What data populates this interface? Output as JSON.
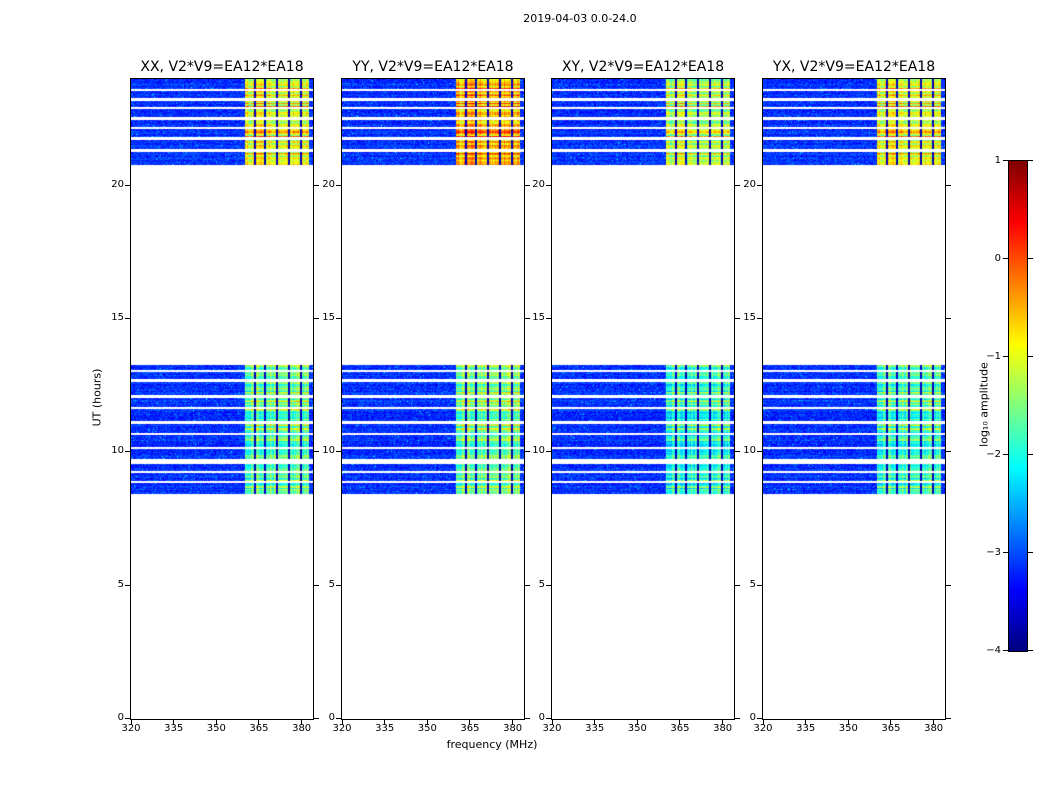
{
  "chart_data": {
    "type": "heatmap",
    "title": "2019-04-03 0.0-24.0",
    "xlabel": "frequency (MHz)",
    "ylabel": "UT (hours)",
    "x_range_mhz": [
      320,
      384
    ],
    "y_range_hours": [
      0,
      24
    ],
    "xticks": [
      320,
      335,
      350,
      365,
      380
    ],
    "yticks": [
      0,
      5,
      10,
      15,
      20
    ],
    "grid": false,
    "panels": [
      {
        "id": "XX",
        "title": "XX, V2*V9=EA12*EA18"
      },
      {
        "id": "YY",
        "title": "YY, V2*V9=EA12*EA18"
      },
      {
        "id": "XY",
        "title": "XY, V2*V9=EA12*EA18"
      },
      {
        "id": "YX",
        "title": "YX, V2*V9=EA12*EA18"
      }
    ],
    "colorbar": {
      "label": "log₁₀ amplitude",
      "ticks": [
        1,
        0,
        -1,
        -2,
        -3,
        -4
      ],
      "range": [
        -4,
        1
      ],
      "colormap": "jet",
      "position": "right"
    },
    "background_noise": {
      "level": -3.45,
      "spread": 0.6,
      "speckle_prob": 0.03,
      "speckle_boost": 1.0,
      "row_variation": 0.12
    },
    "rfi": {
      "freq_range": [
        360.2,
        382.6
      ],
      "dark_channels": [
        [
          363.2,
          363.9
        ],
        [
          366.7,
          367.4
        ],
        [
          371.0,
          371.7
        ],
        [
          375.2,
          375.9
        ],
        [
          379.5,
          380.2
        ]
      ],
      "dark_level": -3.9,
      "row_variation": 0.45,
      "col_variation": 0.35,
      "pixel_noise": 0.3,
      "bright_row_prob": 0.18,
      "bright_row_boost": 0.55
    },
    "observation_bands": [
      {
        "ut_range": [
          8.42,
          13.28
        ],
        "rfi_level": -1.8,
        "panel_rfi_boosts": [
          0.15,
          0.25,
          -0.1,
          0.0
        ],
        "gaps": [
          [
            8.85,
            8.93
          ],
          [
            9.22,
            9.3
          ],
          [
            9.56,
            9.75
          ],
          [
            10.12,
            10.2
          ],
          [
            10.65,
            10.73
          ],
          [
            11.06,
            11.17
          ],
          [
            11.62,
            11.7
          ],
          [
            12.04,
            12.15
          ],
          [
            12.64,
            12.76
          ],
          [
            13.0,
            13.1
          ]
        ]
      },
      {
        "ut_range": [
          20.78,
          24.0
        ],
        "rfi_level": -1.45,
        "panel_rfi_boosts": [
          0.35,
          0.8,
          0.1,
          0.35
        ],
        "gaps": [
          [
            21.26,
            21.38
          ],
          [
            21.71,
            21.83
          ],
          [
            22.12,
            22.2
          ],
          [
            22.46,
            22.58
          ],
          [
            22.87,
            22.95
          ],
          [
            23.17,
            23.29
          ],
          [
            23.55,
            23.63
          ]
        ]
      }
    ]
  }
}
